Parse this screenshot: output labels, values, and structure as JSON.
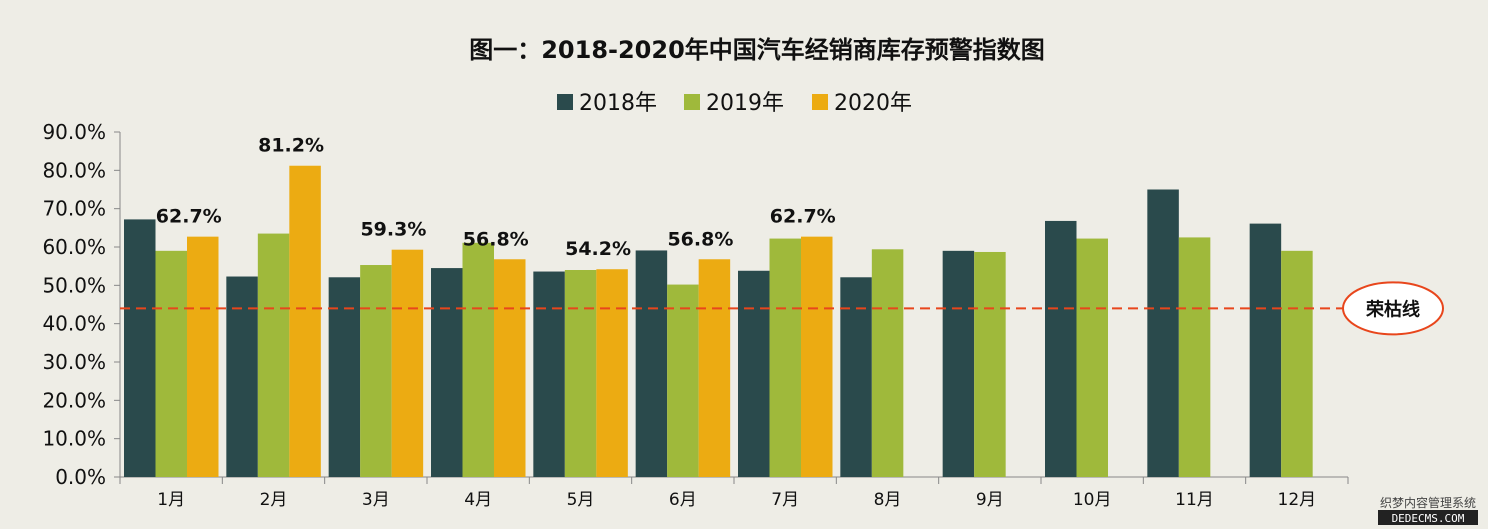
{
  "chart_data": {
    "type": "bar",
    "title": "图一：2018-2020年中国汽车经销商库存预警指数图",
    "categories": [
      "1月",
      "2月",
      "3月",
      "4月",
      "5月",
      "6月",
      "7月",
      "8月",
      "9月",
      "10月",
      "11月",
      "12月"
    ],
    "series": [
      {
        "name": "2018年",
        "color": "#2a4a4c",
        "values": [
          67.2,
          52.3,
          52.1,
          54.5,
          53.6,
          59.1,
          53.8,
          52.1,
          59.0,
          66.8,
          75.0,
          66.1
        ]
      },
      {
        "name": "2019年",
        "color": "#9fb93b",
        "values": [
          59.0,
          63.5,
          55.3,
          61.1,
          54.0,
          50.2,
          62.2,
          59.4,
          58.7,
          62.2,
          62.5,
          59.0
        ]
      },
      {
        "name": "2020年",
        "color": "#ecab12",
        "values": [
          62.7,
          81.2,
          59.3,
          56.8,
          54.2,
          56.8,
          62.7,
          null,
          null,
          null,
          null,
          null
        ]
      }
    ],
    "data_labels": [
      "62.7%",
      "81.2%",
      "59.3%",
      "56.8%",
      "54.2%",
      "56.8%",
      "62.7%"
    ],
    "yticks": [
      "0.0%",
      "10.0%",
      "20.0%",
      "30.0%",
      "40.0%",
      "50.0%",
      "60.0%",
      "70.0%",
      "80.0%",
      "90.0%"
    ],
    "ylim": [
      0,
      90
    ],
    "xlabel": "",
    "ylabel": "",
    "legend_position": "top-center",
    "grid": false,
    "reference_line": {
      "value": 44,
      "label": "荣枯线",
      "color": "#e8461c"
    }
  },
  "watermark": {
    "line1": "织梦内容管理系统",
    "line2": "DEDECMS.COM"
  }
}
